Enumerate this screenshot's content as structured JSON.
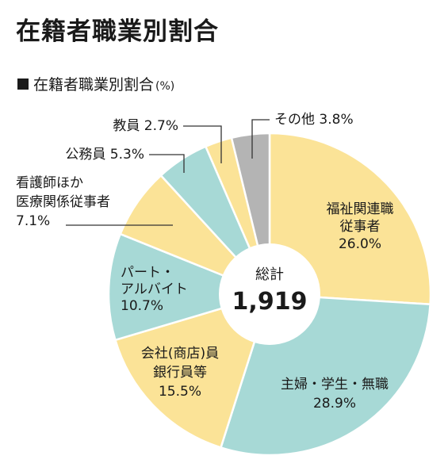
{
  "title": "在籍者職業別割合",
  "subtitle": {
    "text": "在籍者職業別割合",
    "unit": "(%)"
  },
  "center": {
    "label": "総計",
    "value": "1,919"
  },
  "colors": {
    "yellow": "#fbe397",
    "teal": "#a7d9d6",
    "gray": "#b4b4b4",
    "leader": "#333333"
  },
  "chart_data": {
    "type": "pie",
    "title": "在籍者職業別割合",
    "unit": "%",
    "total": "1,919",
    "slices": [
      {
        "name": "福祉関連職従事者",
        "lines": [
          "福祉関連職",
          "従事者",
          "26.0%"
        ],
        "value": 26.0,
        "color": "yellow"
      },
      {
        "name": "主婦・学生・無職",
        "lines": [
          "主婦・学生・無職",
          "28.9%"
        ],
        "value": 28.9,
        "color": "teal"
      },
      {
        "name": "会社(商店)員銀行員等",
        "lines": [
          "会社(商店)員",
          "銀行員等",
          "15.5%"
        ],
        "value": 15.5,
        "color": "yellow"
      },
      {
        "name": "パート・アルバイト",
        "lines": [
          "パート・",
          "アルバイト",
          "10.7%"
        ],
        "value": 10.7,
        "color": "teal"
      },
      {
        "name": "看護師ほか医療関係従事者",
        "lines": [
          "看護師ほか",
          "医療関係従事者",
          "7.1%"
        ],
        "value": 7.1,
        "color": "yellow"
      },
      {
        "name": "公務員",
        "lines": [
          "公務員 5.3%"
        ],
        "value": 5.3,
        "color": "teal"
      },
      {
        "name": "教員",
        "lines": [
          "教員 2.7%"
        ],
        "value": 2.7,
        "color": "yellow"
      },
      {
        "name": "その他",
        "lines": [
          "その他 3.8%"
        ],
        "value": 3.8,
        "color": "gray"
      }
    ]
  }
}
